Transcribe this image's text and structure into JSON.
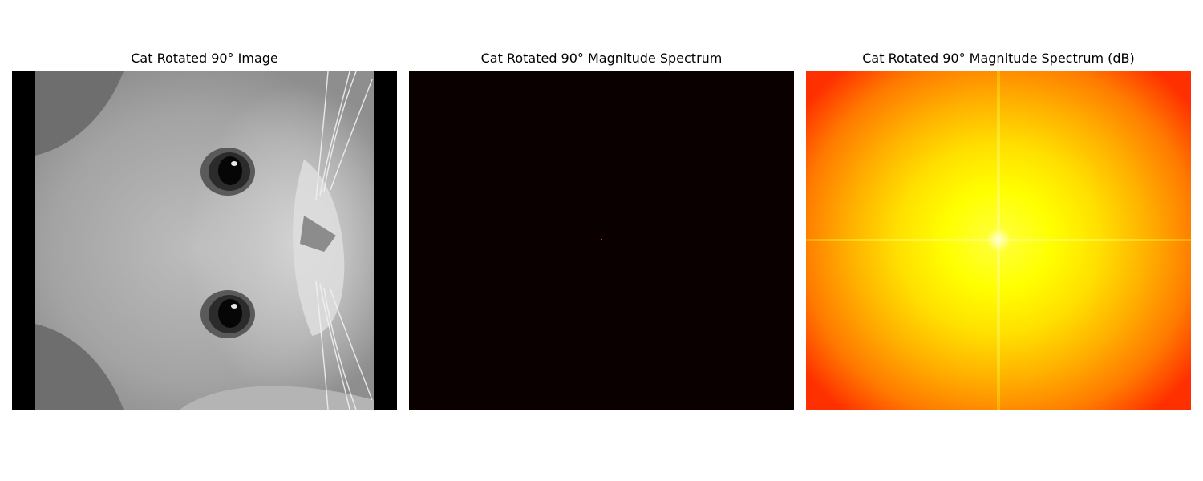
{
  "panels": [
    {
      "title": "Cat Rotated 90° Image"
    },
    {
      "title": "Cat Rotated 90° Magnitude Spectrum"
    },
    {
      "title": "Cat Rotated 90° Magnitude Spectrum (dB)"
    }
  ],
  "colors": {
    "background": "#ffffff",
    "image_border": "#000000",
    "magnitude_background": "#0b0000",
    "magnitude_center": "#ff3030",
    "db_center": "#ffff40",
    "db_edge": "#ff3000"
  }
}
